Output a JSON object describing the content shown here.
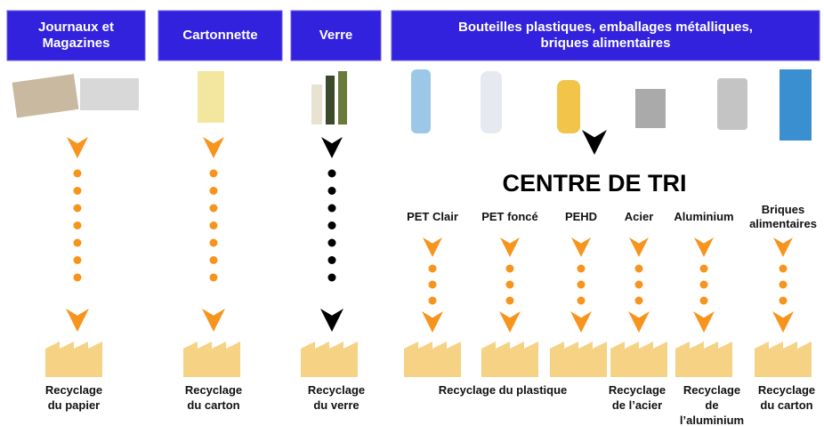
{
  "headers": [
    {
      "lines": [
        "Journaux et",
        "Magazines"
      ]
    },
    {
      "lines": [
        "Cartonnette"
      ]
    },
    {
      "lines": [
        "Verre"
      ]
    },
    {
      "lines": [
        "Bouteilles plastiques, emballages métalliques,",
        "briques alimentaires"
      ]
    }
  ],
  "sorting_center": "CENTRE DE TRI",
  "materials": [
    {
      "lines": [
        "PET Clair"
      ]
    },
    {
      "lines": [
        "PET foncé"
      ]
    },
    {
      "lines": [
        "PEHD"
      ]
    },
    {
      "lines": [
        "Acier"
      ]
    },
    {
      "lines": [
        "Aluminium"
      ]
    },
    {
      "lines": [
        "Briques",
        "alimentaires"
      ]
    }
  ],
  "outputs": [
    {
      "lines": [
        "Recyclage",
        "du papier"
      ]
    },
    {
      "lines": [
        "Recyclage",
        "du carton"
      ]
    },
    {
      "lines": [
        "Recyclage",
        "du verre"
      ]
    },
    {
      "lines": [
        "Recyclage du plastique"
      ]
    },
    {
      "lines": [
        "Recyclage",
        "de l’acier"
      ]
    },
    {
      "lines": [
        "Recyclage",
        "de",
        "l’aluminium"
      ]
    },
    {
      "lines": [
        "Recyclage",
        "du carton"
      ]
    }
  ]
}
